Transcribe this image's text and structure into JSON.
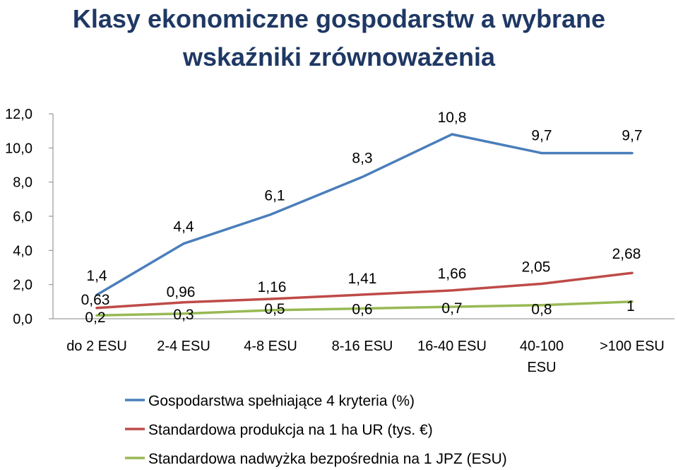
{
  "chart_data": {
    "type": "line",
    "title": "Klasy ekonomiczne gospodarstw a wybrane wskaźniki zrównoważenia",
    "title_lines": [
      "Klasy ekonomiczne gospodarstw a wybrane",
      "wskaźniki zrównoważenia"
    ],
    "categories": [
      "do 2 ESU",
      "2-4 ESU",
      "4-8 ESU",
      "8-16 ESU",
      "16-40 ESU",
      "40-100 ESU",
      ">100 ESU"
    ],
    "category_lines": [
      [
        "do 2 ESU"
      ],
      [
        "2-4 ESU"
      ],
      [
        "4-8 ESU"
      ],
      [
        "8-16 ESU"
      ],
      [
        "16-40 ESU"
      ],
      [
        "40-100",
        "ESU"
      ],
      [
        ">100 ESU"
      ]
    ],
    "ylim": [
      0,
      12
    ],
    "yticks": [
      "0,0",
      "2,0",
      "4,0",
      "6,0",
      "8,0",
      "10,0",
      "12,0"
    ],
    "grid": false,
    "legend": "bottom",
    "series": [
      {
        "name": "Gospodarstwa spełniające 4 kryteria (%)",
        "color": "#4a7ebb",
        "values": [
          1.4,
          4.4,
          6.1,
          8.3,
          10.8,
          9.7,
          9.7
        ],
        "labels": [
          "1,4",
          "4,4",
          "6,1",
          "8,3",
          "10,8",
          "9,7",
          "9,7"
        ]
      },
      {
        "name": "Standardowa produkcja na 1 ha UR (tys. €)",
        "color": "#be4b48",
        "values": [
          0.63,
          0.96,
          1.16,
          1.41,
          1.66,
          2.05,
          2.68
        ],
        "labels": [
          "0,63",
          "0,96",
          "1,16",
          "1,41",
          "1,66",
          "2,05",
          "2,68"
        ]
      },
      {
        "name": "Standardowa nadwyżka bezpośrednia na 1 JPZ (ESU)",
        "color": "#98b954",
        "values": [
          0.2,
          0.3,
          0.5,
          0.6,
          0.7,
          0.8,
          1
        ],
        "labels": [
          "0,2",
          "0,3",
          "0,5",
          "0,6",
          "0,7",
          "0,8",
          "1"
        ]
      }
    ]
  }
}
